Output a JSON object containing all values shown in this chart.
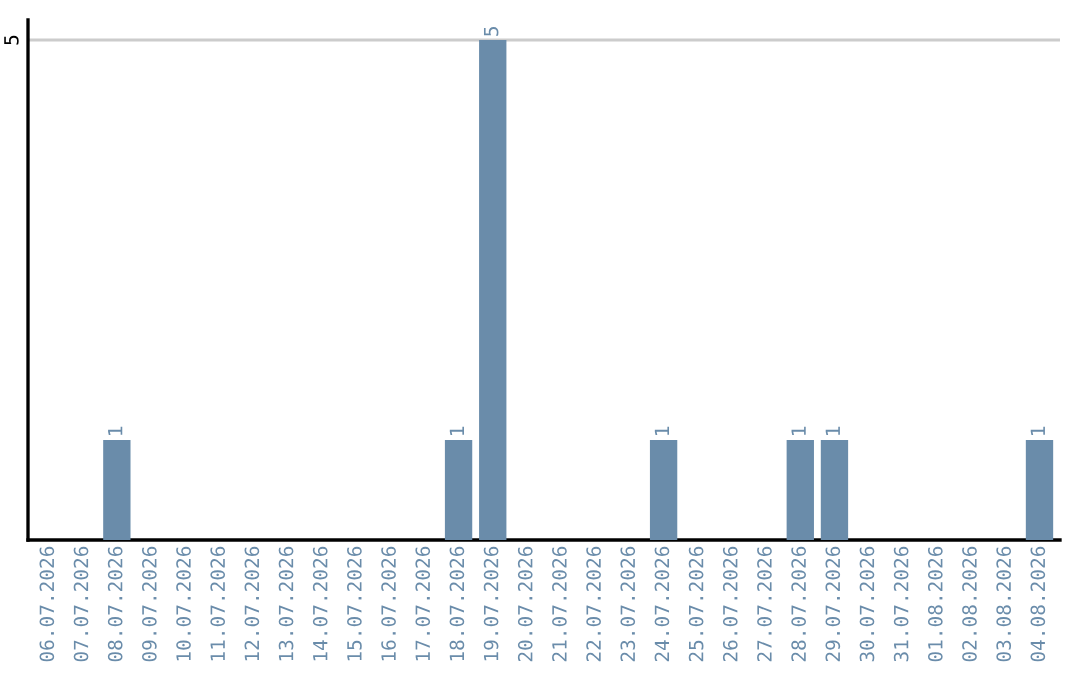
{
  "chart_data": {
    "type": "bar",
    "categories": [
      "06.07.2026",
      "07.07.2026",
      "08.07.2026",
      "09.07.2026",
      "10.07.2026",
      "11.07.2026",
      "12.07.2026",
      "13.07.2026",
      "14.07.2026",
      "15.07.2026",
      "16.07.2026",
      "17.07.2026",
      "18.07.2026",
      "19.07.2026",
      "20.07.2026",
      "21.07.2026",
      "22.07.2026",
      "23.07.2026",
      "24.07.2026",
      "25.07.2026",
      "26.07.2026",
      "27.07.2026",
      "28.07.2026",
      "29.07.2026",
      "30.07.2026",
      "31.07.2026",
      "01.08.2026",
      "02.08.2026",
      "03.08.2026",
      "04.08.2026"
    ],
    "values": [
      0,
      0,
      1,
      0,
      0,
      0,
      0,
      0,
      0,
      0,
      0,
      0,
      1,
      5,
      0,
      0,
      0,
      0,
      1,
      0,
      0,
      0,
      1,
      1,
      0,
      0,
      0,
      0,
      0,
      1
    ],
    "value_labels": [
      null,
      null,
      "1",
      null,
      null,
      null,
      null,
      null,
      null,
      null,
      null,
      null,
      "1",
      "5",
      null,
      null,
      null,
      null,
      "1",
      null,
      null,
      null,
      "1",
      "1",
      null,
      null,
      null,
      null,
      null,
      "1"
    ],
    "color": "#6a8caa",
    "ylim": [
      0,
      5.2
    ],
    "yticks": [
      5
    ],
    "grid": "y"
  }
}
